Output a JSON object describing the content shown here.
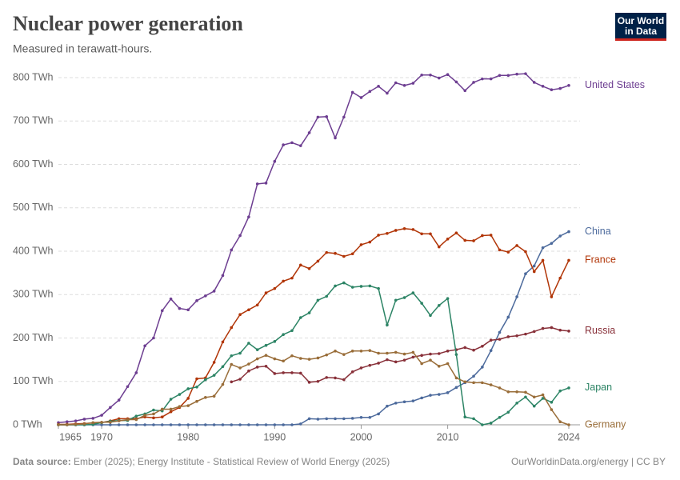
{
  "chart_data": {
    "type": "line",
    "title": "Nuclear power generation",
    "subtitle": "Measured in terawatt-hours.",
    "source_label": "Data source:",
    "source": "Ember (2025); Energy Institute - Statistical Review of World Energy (2025)",
    "credit": "OurWorldinData.org/energy | CC BY",
    "logo": [
      "Our World",
      "in Data"
    ],
    "x": [
      1965,
      1966,
      1967,
      1968,
      1969,
      1970,
      1971,
      1972,
      1973,
      1974,
      1975,
      1976,
      1977,
      1978,
      1979,
      1980,
      1981,
      1982,
      1983,
      1984,
      1985,
      1986,
      1987,
      1988,
      1989,
      1990,
      1991,
      1992,
      1993,
      1994,
      1995,
      1996,
      1997,
      1998,
      1999,
      2000,
      2001,
      2002,
      2003,
      2004,
      2005,
      2006,
      2007,
      2008,
      2009,
      2010,
      2011,
      2012,
      2013,
      2014,
      2015,
      2016,
      2017,
      2018,
      2019,
      2020,
      2021,
      2022,
      2023,
      2024
    ],
    "xlim": [
      1965,
      2024
    ],
    "xticks": [
      1965,
      1970,
      1980,
      1990,
      2000,
      2010,
      2024
    ],
    "ylim": [
      0,
      800
    ],
    "yticks": [
      {
        "value": 0,
        "label": "0 TWh"
      },
      {
        "value": 100,
        "label": "100 TWh"
      },
      {
        "value": 200,
        "label": "200 TWh"
      },
      {
        "value": 300,
        "label": "300 TWh"
      },
      {
        "value": 400,
        "label": "400 TWh"
      },
      {
        "value": 500,
        "label": "500 TWh"
      },
      {
        "value": 600,
        "label": "600 TWh"
      },
      {
        "value": 700,
        "label": "700 TWh"
      },
      {
        "value": 800,
        "label": "800 TWh"
      }
    ],
    "grid": true,
    "series": [
      {
        "name": "United States",
        "color": "#6d3e91",
        "values": [
          5,
          7,
          9,
          13,
          15,
          22,
          40,
          57,
          88,
          120,
          182,
          200,
          263,
          290,
          268,
          265,
          286,
          297,
          308,
          344,
          403,
          436,
          479,
          555,
          557,
          607,
          645,
          650,
          643,
          673,
          709,
          710,
          661,
          709,
          766,
          754,
          768,
          780,
          764,
          788,
          782,
          787,
          806,
          806,
          799,
          807,
          790,
          770,
          789,
          797,
          797,
          805,
          805,
          808,
          809,
          789,
          780,
          772,
          775,
          782
        ]
      },
      {
        "name": "China",
        "color": "#4c6a9c",
        "values": [
          0,
          0,
          0,
          0,
          0,
          0,
          0,
          0,
          0,
          0,
          0,
          0,
          0,
          0,
          0,
          0,
          0,
          0,
          0,
          0,
          0,
          0,
          0,
          0,
          0,
          0,
          0,
          0,
          2,
          14,
          13,
          14,
          14,
          14,
          15,
          17,
          17,
          25,
          43,
          50,
          53,
          55,
          62,
          68,
          70,
          74,
          86,
          97,
          112,
          133,
          171,
          213,
          248,
          295,
          348,
          366,
          408,
          418,
          435,
          445
        ]
      },
      {
        "name": "France",
        "color": "#b13507",
        "values": [
          1,
          1,
          2,
          3,
          4,
          5,
          9,
          14,
          14,
          14,
          18,
          16,
          18,
          30,
          40,
          61,
          106,
          108,
          144,
          191,
          224,
          254,
          265,
          276,
          304,
          314,
          331,
          338,
          368,
          360,
          377,
          397,
          395,
          388,
          394,
          415,
          421,
          437,
          441,
          448,
          452,
          450,
          440,
          440,
          410,
          428,
          442,
          425,
          424,
          436,
          437,
          403,
          398,
          413,
          399,
          353,
          379,
          295,
          338,
          379
        ]
      },
      {
        "name": "Russia",
        "color": "#883039",
        "values": [
          null,
          null,
          null,
          null,
          null,
          null,
          null,
          null,
          null,
          null,
          null,
          null,
          null,
          null,
          null,
          null,
          null,
          null,
          null,
          null,
          99,
          105,
          124,
          133,
          135,
          118,
          120,
          120,
          119,
          98,
          100,
          109,
          108,
          104,
          122,
          131,
          137,
          142,
          150,
          145,
          149,
          156,
          160,
          163,
          164,
          170,
          173,
          178,
          172,
          181,
          195,
          197,
          203,
          205,
          209,
          215,
          222,
          224,
          218,
          216
        ]
      },
      {
        "name": "Japan",
        "color": "#2c8465",
        "values": [
          0,
          0,
          0,
          0,
          1,
          5,
          8,
          10,
          10,
          20,
          25,
          34,
          32,
          59,
          70,
          83,
          87,
          104,
          114,
          134,
          159,
          165,
          188,
          173,
          183,
          192,
          208,
          217,
          247,
          258,
          287,
          296,
          320,
          327,
          317,
          319,
          320,
          314,
          230,
          287,
          293,
          304,
          280,
          252,
          275,
          291,
          162,
          18,
          14,
          0,
          4,
          17,
          29,
          50,
          64,
          43,
          61,
          52,
          78,
          85
        ]
      },
      {
        "name": "Germany",
        "color": "#996d39",
        "values": [
          0,
          0,
          1,
          2,
          5,
          6,
          6,
          9,
          12,
          12,
          22,
          25,
          36,
          36,
          42,
          44,
          54,
          63,
          66,
          93,
          139,
          131,
          140,
          152,
          160,
          152,
          147,
          159,
          153,
          151,
          154,
          161,
          170,
          162,
          170,
          170,
          171,
          165,
          165,
          167,
          163,
          167,
          141,
          149,
          135,
          141,
          108,
          99,
          97,
          97,
          92,
          85,
          76,
          76,
          75,
          64,
          69,
          35,
          7,
          0
        ]
      }
    ]
  }
}
